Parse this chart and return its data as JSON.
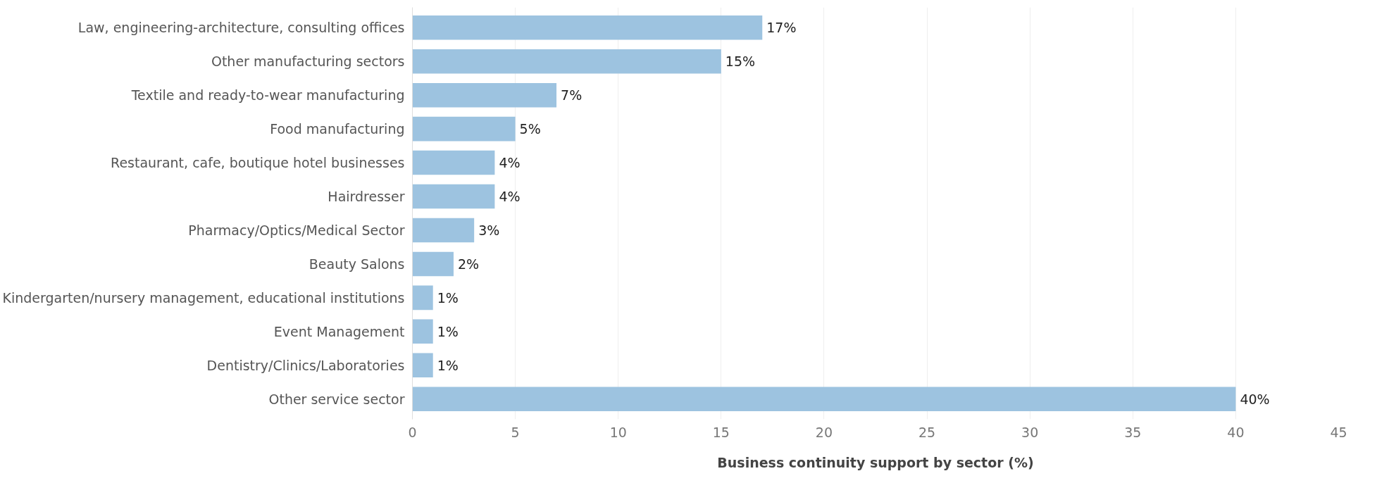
{
  "chart_data": {
    "type": "bar",
    "orientation": "horizontal",
    "xlabel": "Business continuity support by sector (%)",
    "categories": [
      "Law, engineering-architecture, consulting offices",
      "Other manufacturing sectors",
      "Textile and ready-to-wear manufacturing",
      "Food manufacturing",
      "Restaurant, cafe, boutique hotel businesses",
      "Hairdresser",
      "Pharmacy/Optics/Medical Sector",
      "Beauty Salons",
      "Kindergarten/nursery management, educational institutions",
      "Event Management",
      "Dentistry/Clinics/Laboratories",
      "Other service sector"
    ],
    "values": [
      17,
      15,
      7,
      5,
      4,
      4,
      3,
      2,
      1,
      1,
      1,
      40
    ],
    "value_labels": [
      "17%",
      "15%",
      "7%",
      "5%",
      "4%",
      "4%",
      "3%",
      "2%",
      "1%",
      "1%",
      "1%",
      "40%"
    ],
    "color": "#9dc3e0",
    "xlim": [
      0,
      45
    ],
    "xticks": [
      0,
      5,
      10,
      15,
      20,
      25,
      30,
      35,
      40,
      45
    ],
    "grid": "x"
  }
}
